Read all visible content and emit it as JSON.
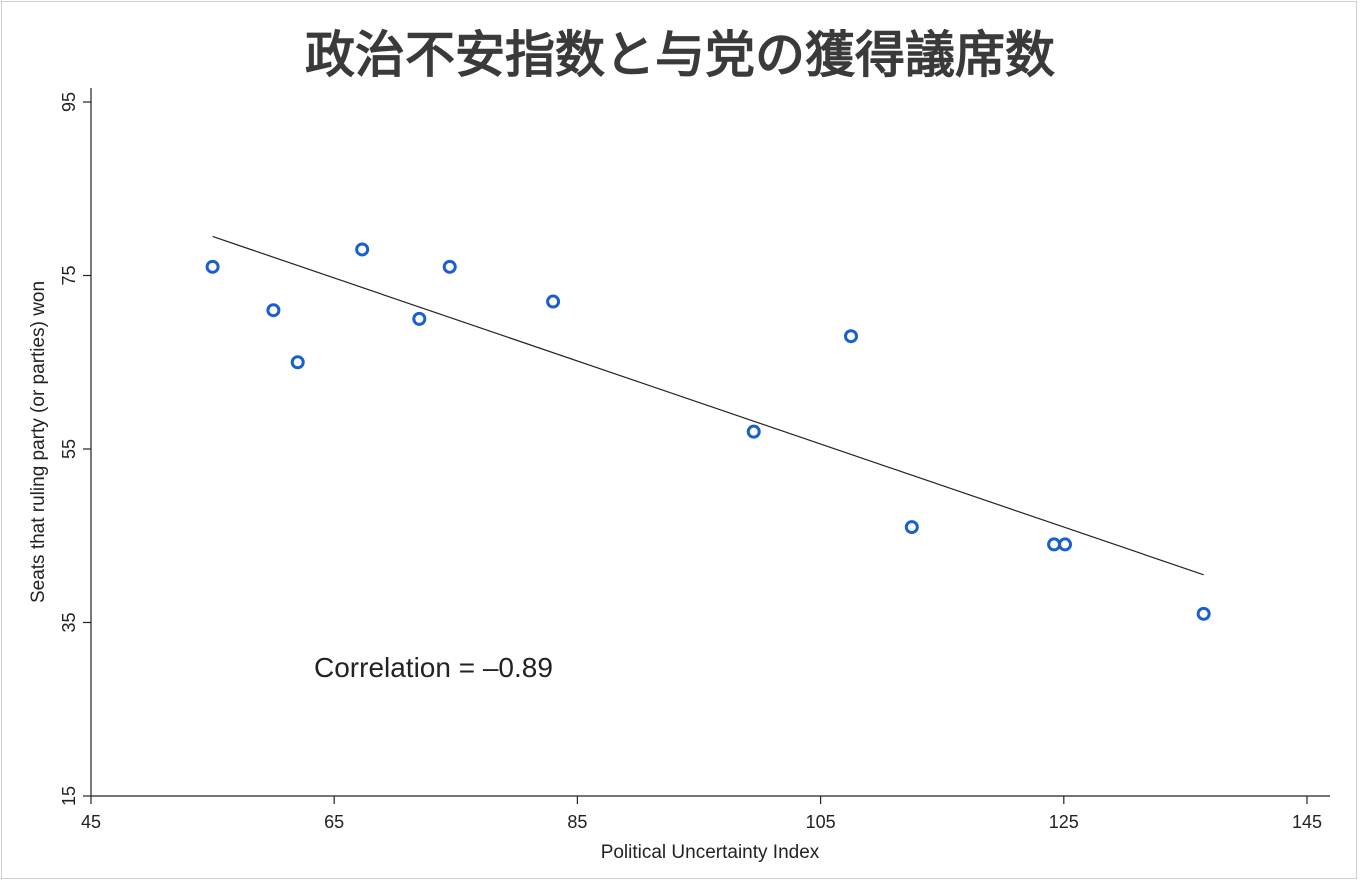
{
  "chart_data": {
    "type": "scatter",
    "title": "政治不安指数と与党の獲得議席数",
    "xlabel": "Political Uncertainty Index",
    "ylabel": "Seats that ruling party (or parties) won",
    "xlim": [
      45,
      147
    ],
    "ylim": [
      15,
      96
    ],
    "xticks": [
      45,
      65,
      85,
      105,
      125,
      145
    ],
    "yticks": [
      15,
      35,
      55,
      75,
      95
    ],
    "points": [
      {
        "x": 55,
        "y": 76
      },
      {
        "x": 60,
        "y": 71
      },
      {
        "x": 62,
        "y": 65
      },
      {
        "x": 67.3,
        "y": 78
      },
      {
        "x": 72,
        "y": 70
      },
      {
        "x": 74.5,
        "y": 76
      },
      {
        "x": 83,
        "y": 72
      },
      {
        "x": 99.5,
        "y": 57
      },
      {
        "x": 107.5,
        "y": 68
      },
      {
        "x": 112.5,
        "y": 46
      },
      {
        "x": 124.2,
        "y": 44
      },
      {
        "x": 125.1,
        "y": 44
      },
      {
        "x": 136.5,
        "y": 36
      }
    ],
    "trendline": {
      "x": [
        55,
        136.5
      ],
      "y": [
        79.5,
        40.5
      ]
    },
    "annotation": "Correlation = –0.89",
    "grid": false,
    "marker_color": "#1a5fd0",
    "line_color": "#222222"
  }
}
